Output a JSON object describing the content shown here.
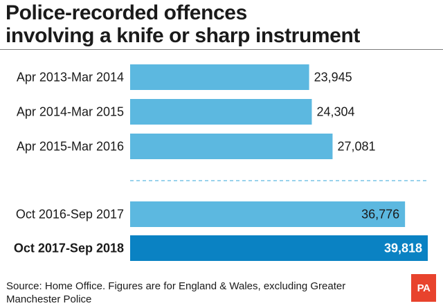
{
  "title_lines": [
    "Police-recorded offences",
    "involving a knife or sharp instrument"
  ],
  "source": "Source: Home Office. Figures are for England & Wales, excluding Greater Manchester Police",
  "logo_text": "PA",
  "colors": {
    "bar": "#5cb8e0",
    "bar_highlight": "#0a82c3",
    "divider": "#5cb8e0"
  },
  "chart_data": {
    "type": "bar",
    "orientation": "horizontal",
    "title": "Police-recorded offences involving a knife or sharp instrument",
    "categories": [
      "Apr 2013-Mar 2014",
      "Apr 2014-Mar 2015",
      "Apr 2015-Mar 2016",
      "Oct 2016-Sep 2017",
      "Oct 2017-Sep 2018"
    ],
    "values": [
      23945,
      24304,
      27081,
      36776,
      39818
    ],
    "value_labels": [
      "23,945",
      "24,304",
      "27,081",
      "36,776",
      "39,818"
    ],
    "highlighted": [
      false,
      false,
      false,
      false,
      true
    ],
    "groups": [
      [
        0,
        1,
        2
      ],
      [
        3,
        4
      ]
    ],
    "xlim": [
      0,
      39818
    ],
    "grid": false,
    "legend": "none"
  }
}
